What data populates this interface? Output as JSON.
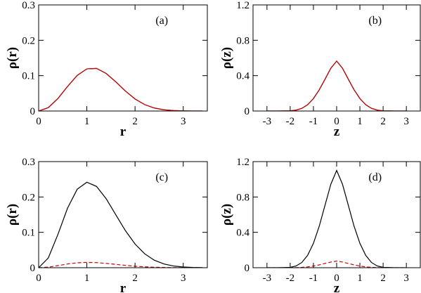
{
  "chart_data": [
    {
      "type": "line",
      "panel_label": "(a)",
      "xlabel": "r",
      "ylabel": "ρ(r)",
      "xlim": [
        0,
        3.5
      ],
      "ylim": [
        0,
        0.3
      ],
      "xticks": [
        0,
        1,
        2,
        3
      ],
      "xtick_labels": [
        "0",
        "1",
        "2",
        "3"
      ],
      "yticks": [
        0,
        0.1,
        0.2,
        0.3
      ],
      "ytick_labels": [
        "0",
        "0.1",
        "0.2",
        "0.3"
      ],
      "grid": false,
      "series": [
        {
          "color": "#000000",
          "dash": "solid",
          "x": [
            0,
            0.2,
            0.4,
            0.6,
            0.8,
            1.0,
            1.2,
            1.4,
            1.6,
            1.8,
            2.0,
            2.2,
            2.4,
            2.6,
            2.8,
            3.0,
            3.2,
            3.4
          ],
          "y": [
            0,
            0.0095,
            0.0354,
            0.0696,
            0.1006,
            0.1191,
            0.1205,
            0.1063,
            0.0825,
            0.0564,
            0.0341,
            0.0181,
            0.0084,
            0.0035,
            0.0013,
            0.0004,
            0.0001,
            0.0
          ]
        },
        {
          "color": "#cc0000",
          "dash": "solid",
          "x": [
            0,
            0.2,
            0.4,
            0.6,
            0.8,
            1.0,
            1.2,
            1.4,
            1.6,
            1.8,
            2.0,
            2.2,
            2.4,
            2.6,
            2.8,
            3.0,
            3.2,
            3.4
          ],
          "y": [
            0,
            0.0095,
            0.0354,
            0.0696,
            0.1006,
            0.1191,
            0.1205,
            0.1063,
            0.0825,
            0.0564,
            0.0341,
            0.0181,
            0.0084,
            0.0035,
            0.0013,
            0.0004,
            0.0001,
            0.0
          ]
        }
      ]
    },
    {
      "type": "line",
      "panel_label": "(b)",
      "xlabel": "z",
      "ylabel": "ρ(z)",
      "xlim": [
        -3.6,
        3.6
      ],
      "ylim": [
        0,
        1.2
      ],
      "xticks": [
        -3,
        -2,
        -1,
        0,
        1,
        2,
        3
      ],
      "xtick_labels": [
        "-3",
        "-2",
        "-1",
        "0",
        "1",
        "2",
        "3"
      ],
      "yticks": [
        0,
        0.4,
        0.8,
        1.2
      ],
      "ytick_labels": [
        "0",
        "0.4",
        "0.8",
        "1.2"
      ],
      "grid": false,
      "series": [
        {
          "color": "#000000",
          "dash": "solid",
          "x": [
            -3.0,
            -2.5,
            -2.0,
            -1.75,
            -1.5,
            -1.25,
            -1.0,
            -0.75,
            -0.5,
            -0.25,
            0,
            0.25,
            0.5,
            0.75,
            1.0,
            1.25,
            1.5,
            1.75,
            2.0,
            2.5,
            3.0
          ],
          "y": [
            0.0,
            0.0,
            0.002,
            0.01,
            0.03,
            0.071,
            0.141,
            0.24,
            0.36,
            0.484,
            0.565,
            0.484,
            0.36,
            0.24,
            0.141,
            0.071,
            0.03,
            0.01,
            0.002,
            0.0,
            0.0
          ]
        },
        {
          "color": "#cc0000",
          "dash": "solid",
          "x": [
            -3.0,
            -2.5,
            -2.0,
            -1.75,
            -1.5,
            -1.25,
            -1.0,
            -0.75,
            -0.5,
            -0.25,
            0,
            0.25,
            0.5,
            0.75,
            1.0,
            1.25,
            1.5,
            1.75,
            2.0,
            2.5,
            3.0
          ],
          "y": [
            0.0,
            0.0,
            0.002,
            0.01,
            0.03,
            0.071,
            0.141,
            0.24,
            0.36,
            0.484,
            0.565,
            0.484,
            0.36,
            0.24,
            0.141,
            0.071,
            0.03,
            0.01,
            0.002,
            0.0,
            0.0
          ]
        }
      ]
    },
    {
      "type": "line",
      "panel_label": "(c)",
      "xlabel": "r",
      "ylabel": "ρ(r)",
      "xlim": [
        0,
        3.5
      ],
      "ylim": [
        0,
        0.3
      ],
      "xticks": [
        0,
        1,
        2,
        3
      ],
      "xtick_labels": [
        "0",
        "1",
        "2",
        "3"
      ],
      "yticks": [
        0,
        0.1,
        0.2,
        0.3
      ],
      "ytick_labels": [
        "0",
        "0.1",
        "0.2",
        "0.3"
      ],
      "grid": false,
      "series": [
        {
          "color": "#000000",
          "dash": "solid",
          "x": [
            0,
            0.2,
            0.4,
            0.6,
            0.8,
            1.0,
            1.2,
            1.4,
            1.6,
            1.8,
            2.0,
            2.2,
            2.4,
            2.6,
            2.8,
            3.0,
            3.2,
            3.4
          ],
          "y": [
            0,
            0.0276,
            0.0943,
            0.1686,
            0.2219,
            0.2417,
            0.2299,
            0.1952,
            0.1499,
            0.1048,
            0.067,
            0.0393,
            0.0212,
            0.0105,
            0.0048,
            0.002,
            0.0008,
            0.0003
          ]
        },
        {
          "color": "#cc0000",
          "dash": "dashed",
          "x": [
            0,
            0.2,
            0.4,
            0.6,
            0.8,
            1.0,
            1.2,
            1.4,
            1.6,
            1.8,
            2.0,
            2.2,
            2.4,
            2.6,
            2.8,
            3.0,
            3.2,
            3.4
          ],
          "y": [
            0,
            0.0017,
            0.0059,
            0.0105,
            0.0139,
            0.0151,
            0.0144,
            0.0122,
            0.0094,
            0.0066,
            0.0042,
            0.0025,
            0.0013,
            0.0007,
            0.0003,
            0.0001,
            0.0001,
            0.0
          ]
        }
      ]
    },
    {
      "type": "line",
      "panel_label": "(d)",
      "xlabel": "z",
      "ylabel": "ρ(z)",
      "xlim": [
        -3.6,
        3.6
      ],
      "ylim": [
        0,
        1.2
      ],
      "xticks": [
        -3,
        -2,
        -1,
        0,
        1,
        2,
        3
      ],
      "xtick_labels": [
        "-3",
        "-2",
        "-1",
        "0",
        "1",
        "2",
        "3"
      ],
      "yticks": [
        0,
        0.4,
        0.8,
        1.2
      ],
      "ytick_labels": [
        "0",
        "0.4",
        "0.8",
        "1.2"
      ],
      "grid": false,
      "series": [
        {
          "color": "#000000",
          "dash": "solid",
          "x": [
            -3.0,
            -2.5,
            -2.0,
            -1.75,
            -1.5,
            -1.25,
            -1.0,
            -0.75,
            -0.5,
            -0.25,
            0,
            0.25,
            0.5,
            0.75,
            1.0,
            1.25,
            1.5,
            1.75,
            2.0,
            2.5,
            3.0
          ],
          "y": [
            0.0,
            0.0,
            0.004,
            0.019,
            0.059,
            0.14,
            0.276,
            0.469,
            0.708,
            0.945,
            1.1,
            0.945,
            0.708,
            0.469,
            0.276,
            0.14,
            0.059,
            0.019,
            0.004,
            0.0,
            0.0
          ]
        },
        {
          "color": "#cc0000",
          "dash": "dashed",
          "x": [
            -3.0,
            -2.5,
            -2.0,
            -1.75,
            -1.5,
            -1.25,
            -1.0,
            -0.75,
            -0.5,
            -0.25,
            0,
            0.25,
            0.5,
            0.75,
            1.0,
            1.25,
            1.5,
            1.75,
            2.0,
            2.5,
            3.0
          ],
          "y": [
            0.0,
            0.0,
            0.0003,
            0.0013,
            0.004,
            0.0095,
            0.0188,
            0.032,
            0.048,
            0.064,
            0.075,
            0.064,
            0.048,
            0.032,
            0.0188,
            0.0095,
            0.004,
            0.0013,
            0.0003,
            0.0,
            0.0
          ]
        }
      ]
    }
  ]
}
